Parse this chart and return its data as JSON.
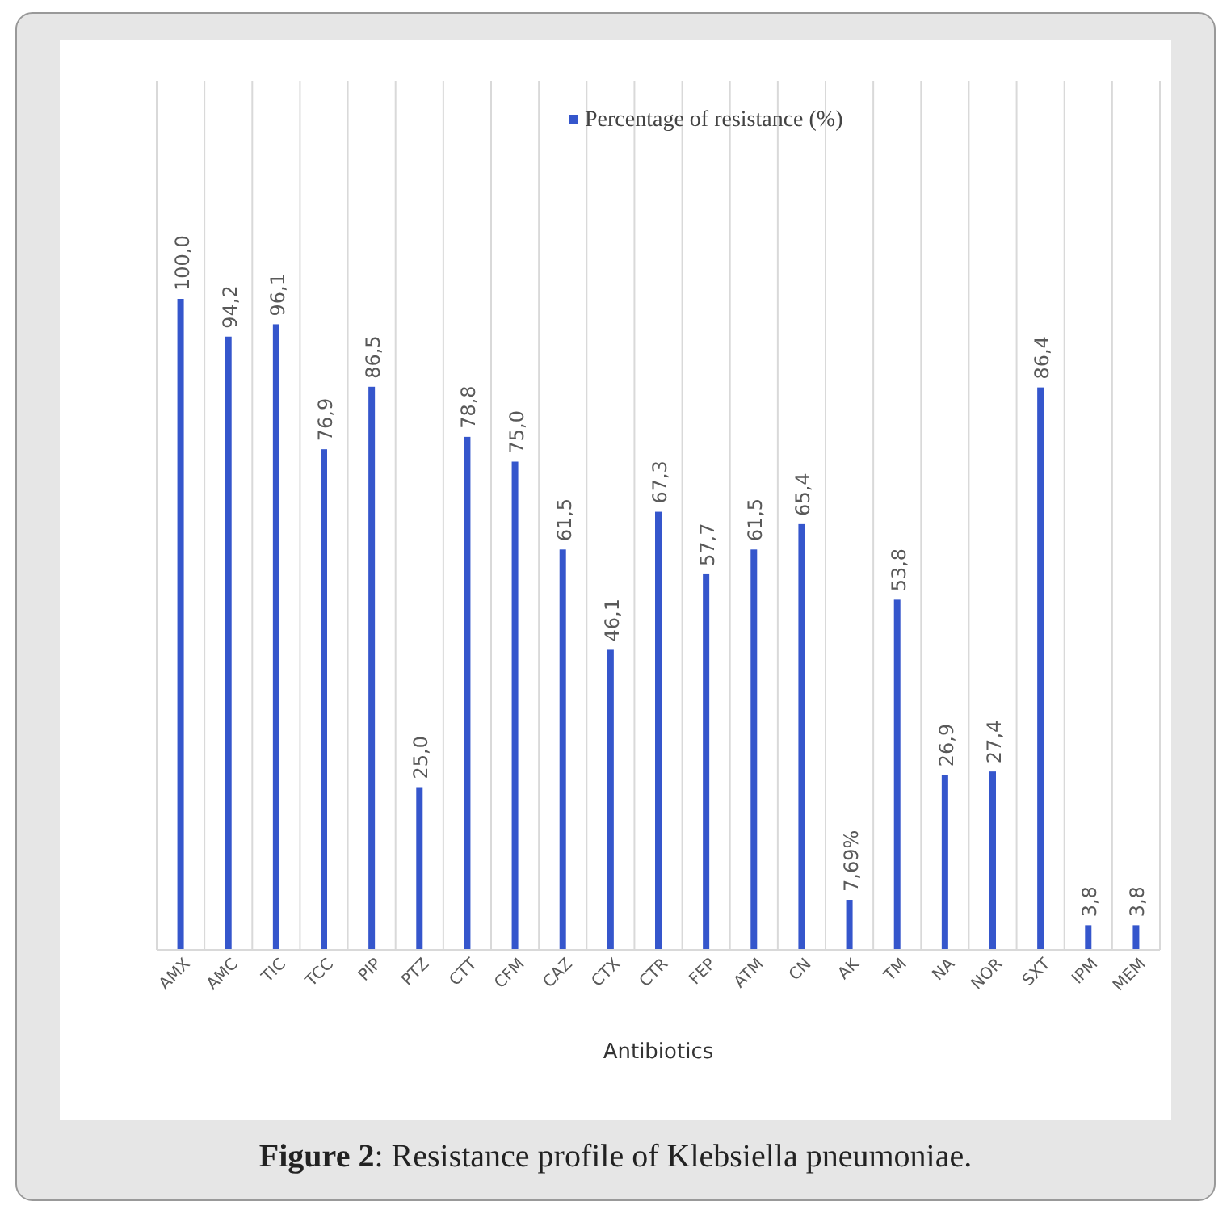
{
  "chart_data": {
    "type": "bar",
    "title": "Figure 2: Resistance profile of Klebsiella pneumoniae.",
    "xlabel": "Antibiotics",
    "legend": "top",
    "categories": [
      "AMX",
      "AMC",
      "TIC",
      "TCC",
      "PIP",
      "PTZ",
      "CTT",
      "CFM",
      "CAZ",
      "CTX",
      "CTR",
      "FEP",
      "ATM",
      "CN",
      "AK",
      "TM",
      "NA",
      "NOR",
      "SXT",
      "IPM",
      "MEM"
    ],
    "series": [
      {
        "name": "Percentage of resistance (%)",
        "color": "#3556cc",
        "values": [
          100.0,
          94.2,
          96.1,
          76.9,
          86.5,
          25.0,
          78.8,
          75.0,
          61.5,
          46.1,
          67.3,
          57.7,
          61.5,
          65.4,
          7.69,
          53.8,
          26.9,
          27.4,
          86.4,
          3.8,
          3.8
        ],
        "value_labels": [
          "100,0",
          "94,2",
          "96,1",
          "76,9",
          "86,5",
          "25,0",
          "78,8",
          "75,0",
          "61,5",
          "46,1",
          "67,3",
          "57,7",
          "61,5",
          "65,4",
          "7,69%",
          "53,8",
          "26,9",
          "27,4",
          "86,4",
          "3,8",
          "3,8"
        ]
      }
    ],
    "grid": "x"
  }
}
